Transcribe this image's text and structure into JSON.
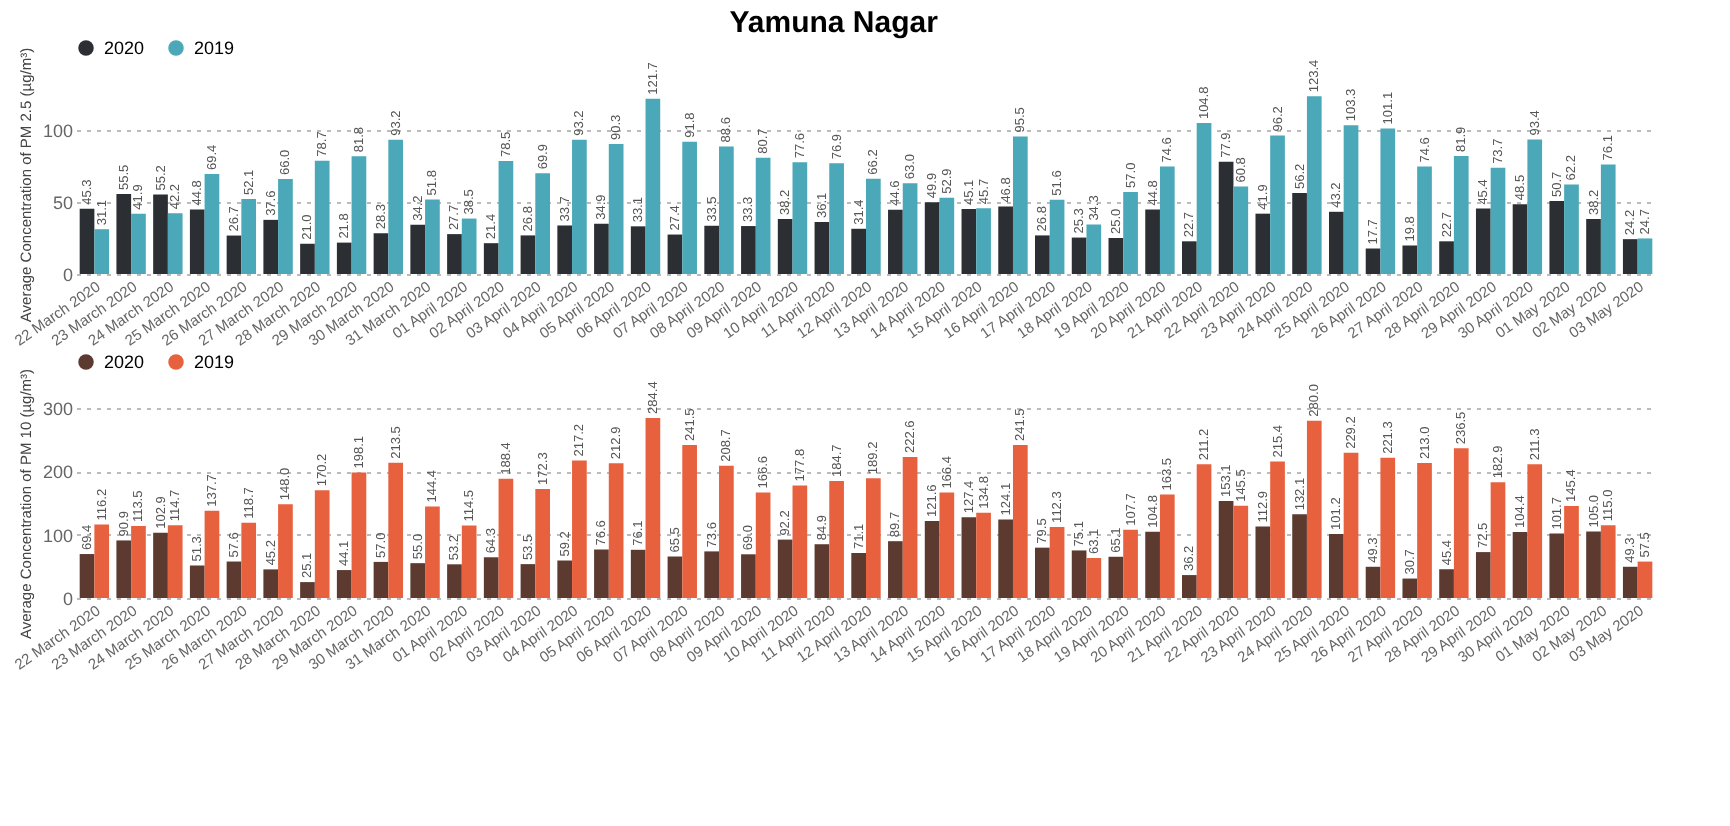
{
  "chart_data": [
    {
      "type": "bar",
      "title": "Yamuna Nagar",
      "ylabel": "Average Concentration of PM 2.5 (µg/m³)",
      "categories": [
        "22 March 2020",
        "23 March 2020",
        "24 March 2020",
        "25 March 2020",
        "26 March 2020",
        "27 March 2020",
        "28 March 2020",
        "29 March 2020",
        "30 March 2020",
        "31 March 2020",
        "01 April 2020",
        "02 April 2020",
        "03 April 2020",
        "04 April 2020",
        "05 April 2020",
        "06 April 2020",
        "07 April 2020",
        "08 April 2020",
        "09 April 2020",
        "10 April 2020",
        "11 April 2020",
        "12 April 2020",
        "13 April 2020",
        "14 April 2020",
        "15 April 2020",
        "16 April 2020",
        "17 April 2020",
        "18 April 2020",
        "19 April 2020",
        "20 April 2020",
        "21 April 2020",
        "22 April 2020",
        "23 April 2020",
        "24 April 2020",
        "25 April 2020",
        "26 April 2020",
        "27 April 2020",
        "28 April 2020",
        "29 April 2020",
        "30 April 2020",
        "01 May 2020",
        "02 May 2020",
        "03 May 2020"
      ],
      "series": [
        {
          "name": "2020",
          "color": "#2b2f33",
          "values": [
            45.3,
            55.5,
            55.2,
            44.8,
            26.7,
            37.6,
            21.0,
            21.8,
            28.3,
            34.2,
            27.7,
            21.4,
            26.8,
            33.7,
            34.9,
            33.1,
            27.4,
            33.5,
            33.3,
            38.2,
            36.1,
            31.4,
            44.6,
            49.9,
            45.1,
            46.8,
            26.8,
            25.3,
            25.0,
            44.8,
            22.7,
            77.9,
            41.9,
            56.2,
            43.2,
            17.7,
            19.8,
            22.7,
            45.4,
            48.5,
            50.7,
            38.2,
            24.2
          ],
          "value_labels": [
            "45.3",
            "55.5",
            "55.2",
            "44.8",
            "26.7",
            "37.6",
            "21.0",
            "21.8",
            "28.3",
            "34.2",
            "27.7",
            "21.4",
            "26.8",
            "33.7",
            "34.9",
            "33.1",
            "27.4",
            "33.5",
            "33.3",
            "38.2",
            "36.1",
            "31.4",
            "44.6",
            "49.9",
            "45.1",
            "46.8",
            "26.8",
            "25.3",
            "25.0",
            "44.8",
            "22.7",
            "77.9",
            "41.9",
            "56.2",
            "43.2",
            "17.7",
            "19.8",
            "22.7",
            "45.4",
            "48.5",
            "50.7",
            "38.2",
            "24.2"
          ]
        },
        {
          "name": "2019",
          "color": "#4aa8b8",
          "values": [
            31.1,
            41.9,
            42.2,
            69.4,
            52.1,
            66.0,
            78.7,
            81.8,
            93.2,
            51.8,
            38.5,
            78.5,
            69.9,
            93.2,
            90.3,
            121.7,
            91.8,
            88.6,
            80.7,
            77.6,
            76.9,
            66.2,
            63.0,
            52.9,
            45.7,
            95.5,
            51.6,
            34.3,
            57.0,
            74.6,
            104.8,
            60.8,
            96.2,
            123.4,
            103.3,
            101.1,
            74.6,
            81.9,
            73.7,
            93.4,
            62.2,
            76.1,
            24.7
          ],
          "value_labels": [
            "31.1",
            "41.9",
            "42.2",
            "69.4",
            "52.1",
            "66.0",
            "78.7",
            "81.8",
            "93.2",
            "51.8",
            "38.5",
            "78.5",
            "69.9",
            "93.2",
            "90.3",
            "121.7",
            "91.8",
            "88.6",
            "80.7",
            "77.6",
            "76.9",
            "66.2",
            "63.0",
            "52.9",
            "45.7",
            "95.5",
            "51.6",
            "34.3",
            "57.0",
            "74.6",
            "104.8",
            "60.8",
            "96.2",
            "123.4",
            "103.3",
            "101.1",
            "74.6",
            "81.9",
            "73.7",
            "93.4",
            "62.2",
            "76.1",
            "24.7"
          ]
        }
      ],
      "ylim": [
        0,
        125
      ],
      "yticks": [
        0,
        50,
        100
      ],
      "grid": "y",
      "legend": "top left"
    },
    {
      "type": "bar",
      "ylabel": "Average Concentration of PM 10 (µg/m³)",
      "categories": [
        "22 March 2020",
        "23 March 2020",
        "24 March 2020",
        "25 March 2020",
        "26 March 2020",
        "27 March 2020",
        "28 March 2020",
        "29 March 2020",
        "30 March 2020",
        "31 March 2020",
        "01 April 2020",
        "02 April 2020",
        "03 April 2020",
        "04 April 2020",
        "05 April 2020",
        "06 April 2020",
        "07 April 2020",
        "08 April 2020",
        "09 April 2020",
        "10 April 2020",
        "11 April 2020",
        "12 April 2020",
        "13 April 2020",
        "14 April 2020",
        "15 April 2020",
        "16 April 2020",
        "17 April 2020",
        "18 April 2020",
        "19 April 2020",
        "20 April 2020",
        "21 April 2020",
        "22 April 2020",
        "23 April 2020",
        "24 April 2020",
        "25 April 2020",
        "26 April 2020",
        "27 April 2020",
        "28 April 2020",
        "29 April 2020",
        "30 April 2020",
        "01 May 2020",
        "02 May 2020",
        "03 May 2020"
      ],
      "series": [
        {
          "name": "2020",
          "color": "#5c3a30",
          "values": [
            69.4,
            90.9,
            102.9,
            51.3,
            57.6,
            45.2,
            25.1,
            44.1,
            57.0,
            55.0,
            53.2,
            64.3,
            53.5,
            59.2,
            76.6,
            76.1,
            65.5,
            73.6,
            69.0,
            92.2,
            84.9,
            71.1,
            89.7,
            121.6,
            127.4,
            124.1,
            79.5,
            75.1,
            65.1,
            104.8,
            36.2,
            153.1,
            112.9,
            132.1,
            101.2,
            49.3,
            30.7,
            45.4,
            72.5,
            104.4,
            101.7,
            105.0,
            49.3
          ],
          "value_labels": [
            "69.4",
            "90.9",
            "102.9",
            "51.3",
            "57.6",
            "45.2",
            "25.1",
            "44.1",
            "57.0",
            "55.0",
            "53.2",
            "64.3",
            "53.5",
            "59.2",
            "76.6",
            "76.1",
            "65.5",
            "73.6",
            "69.0",
            "92.2",
            "84.9",
            "71.1",
            "89.7",
            "121.6",
            "127.4",
            "124.1",
            "79.5",
            "75.1",
            "65.1",
            "104.8",
            "36.2",
            "153.1",
            "112.9",
            "132.1",
            "101.2",
            "49.3",
            "30.7",
            "45.4",
            "72.5",
            "104.4",
            "101.7",
            "105.0",
            "49.3"
          ]
        },
        {
          "name": "2019",
          "color": "#e8613e",
          "values": [
            116.2,
            113.5,
            114.7,
            137.7,
            118.7,
            148.0,
            170.2,
            198.1,
            213.5,
            144.4,
            114.5,
            188.4,
            172.3,
            217.2,
            212.9,
            284.4,
            241.5,
            208.7,
            166.6,
            177.8,
            184.7,
            189.2,
            222.6,
            166.4,
            134.8,
            241.5,
            112.3,
            63.1,
            107.7,
            163.5,
            211.2,
            145.5,
            215.4,
            280.0,
            229.2,
            221.3,
            213.0,
            236.5,
            182.9,
            211.3,
            145.4,
            115.0,
            57.5
          ],
          "value_labels": [
            "116.2",
            "113.5",
            "114.7",
            "137.7",
            "118.7",
            "148.0",
            "170.2",
            "198.1",
            "213.5",
            "144.4",
            "114.5",
            "188.4",
            "172.3",
            "217.2",
            "212.9",
            "284.4",
            "241.5",
            "208.7",
            "166.6",
            "177.8",
            "184.7",
            "189.2",
            "222.6",
            "166.4",
            "134.8",
            "241.5",
            "112.3",
            "63.1",
            "107.7",
            "163.5",
            "211.2",
            "145.5",
            "215.4",
            "280.0",
            "229.2",
            "221.3",
            "213.0",
            "236.5",
            "182.9",
            "211.3",
            "145.4",
            "115.0",
            "57.5"
          ]
        }
      ],
      "ylim": [
        0,
        300
      ],
      "yticks": [
        0,
        100,
        200,
        300
      ],
      "grid": "y",
      "legend": "top left"
    }
  ]
}
